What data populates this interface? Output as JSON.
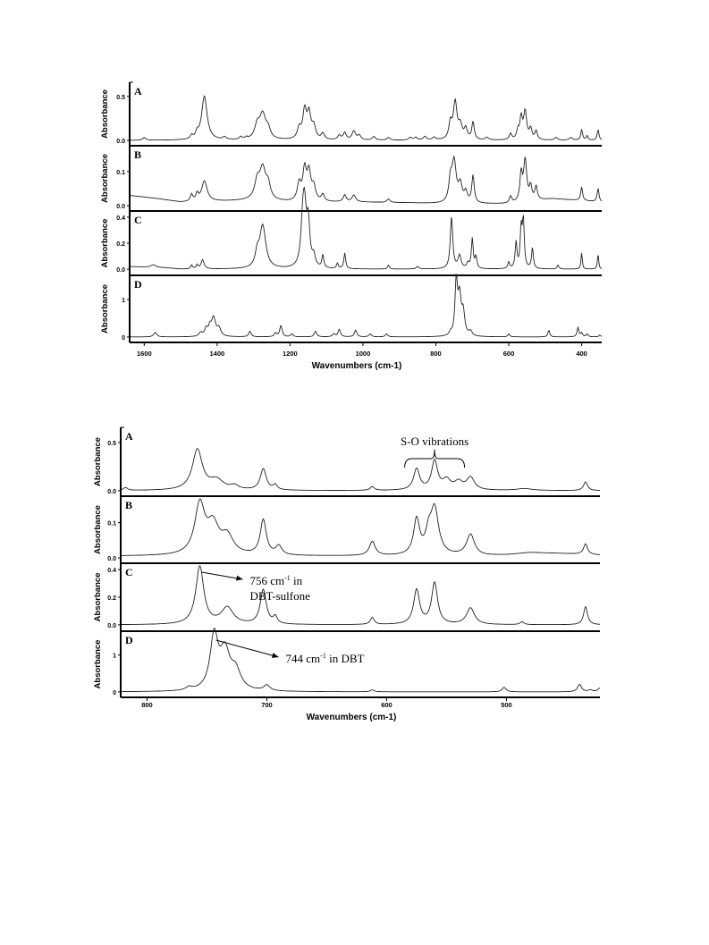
{
  "chart_data": [
    {
      "type": "line",
      "x_reversed": true,
      "xlim": [
        1640,
        345
      ],
      "xlabel": "Wavenumbers (cm-1)",
      "x_ticks": [
        1600,
        1400,
        1200,
        1000,
        800,
        600,
        400
      ],
      "grid": false,
      "panels": [
        {
          "label": "A",
          "ylabel": "Absorbance",
          "ylim": [
            -0.02,
            0.62
          ],
          "y_ticks": [
            0.0,
            0.5
          ],
          "y_tick_labels": [
            "0.0",
            "0.5"
          ],
          "peaks": [
            [
              1600,
              0.03,
              5
            ],
            [
              1470,
              0.04,
              4
            ],
            [
              1455,
              0.06,
              4
            ],
            [
              1435,
              0.5,
              9
            ],
            [
              1380,
              0.03,
              5
            ],
            [
              1335,
              0.03,
              4
            ],
            [
              1320,
              0.02,
              4
            ],
            [
              1290,
              0.15,
              8
            ],
            [
              1275,
              0.28,
              10
            ],
            [
              1260,
              0.1,
              7
            ],
            [
              1175,
              0.12,
              6
            ],
            [
              1160,
              0.32,
              6
            ],
            [
              1148,
              0.28,
              6
            ],
            [
              1135,
              0.14,
              6
            ],
            [
              1110,
              0.07,
              5
            ],
            [
              1065,
              0.05,
              5
            ],
            [
              1050,
              0.08,
              5
            ],
            [
              1025,
              0.1,
              6
            ],
            [
              1010,
              0.05,
              5
            ],
            [
              970,
              0.04,
              5
            ],
            [
              930,
              0.03,
              5
            ],
            [
              870,
              0.03,
              5
            ],
            [
              855,
              0.03,
              5
            ],
            [
              830,
              0.04,
              5
            ],
            [
              805,
              0.03,
              5
            ],
            [
              760,
              0.18,
              5
            ],
            [
              747,
              0.42,
              6
            ],
            [
              733,
              0.15,
              6
            ],
            [
              718,
              0.12,
              5
            ],
            [
              698,
              0.2,
              4
            ],
            [
              660,
              0.03,
              5
            ],
            [
              595,
              0.07,
              4
            ],
            [
              575,
              0.1,
              4
            ],
            [
              566,
              0.24,
              4
            ],
            [
              555,
              0.32,
              5
            ],
            [
              540,
              0.12,
              4
            ],
            [
              525,
              0.1,
              4
            ],
            [
              470,
              0.03,
              5
            ],
            [
              430,
              0.03,
              5
            ],
            [
              400,
              0.12,
              3
            ],
            [
              385,
              0.05,
              3
            ],
            [
              355,
              0.12,
              3
            ]
          ]
        },
        {
          "label": "B",
          "ylabel": "Absorbance",
          "ylim": [
            -0.005,
            0.165
          ],
          "y_ticks": [
            0.0,
            0.1
          ],
          "y_tick_labels": [
            "0.0",
            "0.1"
          ],
          "baseline": [
            [
              1640,
              0.03
            ],
            [
              1560,
              0.02
            ],
            [
              1500,
              0.01
            ],
            [
              1300,
              0.015
            ],
            [
              1200,
              0.01
            ],
            [
              1000,
              0.01
            ],
            [
              870,
              0.008
            ],
            [
              780,
              0.005
            ],
            [
              600,
              0.005
            ],
            [
              480,
              0.02
            ],
            [
              400,
              0.015
            ],
            [
              345,
              0.01
            ]
          ],
          "peaks": [
            [
              1470,
              0.02,
              4
            ],
            [
              1455,
              0.02,
              4
            ],
            [
              1435,
              0.06,
              9
            ],
            [
              1290,
              0.05,
              8
            ],
            [
              1275,
              0.09,
              10
            ],
            [
              1260,
              0.04,
              7
            ],
            [
              1175,
              0.05,
              6
            ],
            [
              1160,
              0.09,
              6
            ],
            [
              1148,
              0.08,
              6
            ],
            [
              1135,
              0.04,
              6
            ],
            [
              1110,
              0.02,
              5
            ],
            [
              1050,
              0.02,
              5
            ],
            [
              1025,
              0.02,
              6
            ],
            [
              930,
              0.01,
              5
            ],
            [
              760,
              0.06,
              5
            ],
            [
              750,
              0.12,
              7
            ],
            [
              733,
              0.05,
              6
            ],
            [
              718,
              0.03,
              5
            ],
            [
              698,
              0.08,
              4
            ],
            [
              595,
              0.02,
              4
            ],
            [
              566,
              0.08,
              4
            ],
            [
              555,
              0.12,
              5
            ],
            [
              540,
              0.04,
              4
            ],
            [
              525,
              0.04,
              4
            ],
            [
              400,
              0.04,
              3
            ],
            [
              355,
              0.04,
              3
            ]
          ]
        },
        {
          "label": "C",
          "ylabel": "Absorbance",
          "ylim": [
            -0.02,
            0.42
          ],
          "y_ticks": [
            0.0,
            0.2,
            0.4
          ],
          "y_tick_labels": [
            "0.0",
            "0.2",
            "0.4"
          ],
          "baseline": [
            [
              1640,
              0.02
            ],
            [
              1540,
              0.01
            ],
            [
              1500,
              0.0
            ],
            [
              345,
              0.0
            ]
          ],
          "peaks": [
            [
              1575,
              0.02,
              8
            ],
            [
              1470,
              0.03,
              3
            ],
            [
              1455,
              0.03,
              3
            ],
            [
              1440,
              0.07,
              5
            ],
            [
              1275,
              0.33,
              10
            ],
            [
              1290,
              0.1,
              6
            ],
            [
              1165,
              0.3,
              6
            ],
            [
              1160,
              0.37,
              6
            ],
            [
              1150,
              0.32,
              5
            ],
            [
              1135,
              0.08,
              5
            ],
            [
              1110,
              0.1,
              3
            ],
            [
              1070,
              0.04,
              3
            ],
            [
              1050,
              0.12,
              3
            ],
            [
              930,
              0.03,
              3
            ],
            [
              850,
              0.02,
              4
            ],
            [
              757,
              0.4,
              4
            ],
            [
              735,
              0.1,
              5
            ],
            [
              712,
              0.04,
              4
            ],
            [
              700,
              0.23,
              3
            ],
            [
              690,
              0.09,
              3
            ],
            [
              600,
              0.05,
              3
            ],
            [
              580,
              0.2,
              3
            ],
            [
              566,
              0.3,
              3
            ],
            [
              560,
              0.36,
              3
            ],
            [
              535,
              0.16,
              3
            ],
            [
              465,
              0.03,
              3
            ],
            [
              400,
              0.13,
              2
            ],
            [
              355,
              0.12,
              2
            ]
          ]
        },
        {
          "label": "D",
          "ylabel": "Absorbance",
          "ylim": [
            -0.05,
            1.55
          ],
          "y_ticks": [
            0,
            1
          ],
          "y_tick_labels": [
            "0",
            "1"
          ],
          "peaks": [
            [
              1570,
              0.12,
              5
            ],
            [
              1445,
              0.1,
              5
            ],
            [
              1430,
              0.2,
              5
            ],
            [
              1420,
              0.2,
              4
            ],
            [
              1410,
              0.5,
              7
            ],
            [
              1395,
              0.2,
              6
            ],
            [
              1310,
              0.15,
              4
            ],
            [
              1240,
              0.1,
              4
            ],
            [
              1225,
              0.3,
              4
            ],
            [
              1195,
              0.08,
              4
            ],
            [
              1130,
              0.15,
              4
            ],
            [
              1080,
              0.08,
              4
            ],
            [
              1065,
              0.2,
              4
            ],
            [
              1020,
              0.18,
              4
            ],
            [
              980,
              0.08,
              4
            ],
            [
              935,
              0.08,
              4
            ],
            [
              760,
              0.08,
              3
            ],
            [
              744,
              1.45,
              4
            ],
            [
              735,
              1.0,
              5
            ],
            [
              725,
              0.6,
              5
            ],
            [
              705,
              0.12,
              5
            ],
            [
              600,
              0.08,
              3
            ],
            [
              490,
              0.18,
              3
            ],
            [
              410,
              0.25,
              3
            ],
            [
              400,
              0.1,
              3
            ],
            [
              385,
              0.08,
              3
            ],
            [
              350,
              0.05,
              3
            ]
          ]
        }
      ]
    },
    {
      "type": "line",
      "x_reversed": true,
      "xlim": [
        822,
        422
      ],
      "xlabel": "Wavenumbers (cm-1)",
      "x_ticks": [
        800,
        700,
        600,
        500
      ],
      "grid": false,
      "panels": [
        {
          "label": "A",
          "ylabel": "Absorbance",
          "ylim": [
            -0.02,
            0.62
          ],
          "y_ticks": [
            0.0,
            0.5
          ],
          "y_tick_labels": [
            "0.0",
            "0.5"
          ],
          "peaks": [
            [
              818,
              0.03,
              2
            ],
            [
              758,
              0.42,
              5
            ],
            [
              742,
              0.1,
              7
            ],
            [
              727,
              0.04,
              4
            ],
            [
              703,
              0.22,
              3
            ],
            [
              693,
              0.05,
              2
            ],
            [
              612,
              0.04,
              2
            ],
            [
              575,
              0.22,
              3
            ],
            [
              560,
              0.3,
              3
            ],
            [
              550,
              0.1,
              4
            ],
            [
              540,
              0.08,
              4
            ],
            [
              530,
              0.13,
              4
            ],
            [
              485,
              0.02,
              8
            ],
            [
              434,
              0.09,
              2
            ]
          ]
        },
        {
          "label": "B",
          "ylabel": "Absorbance",
          "ylim": [
            -0.005,
            0.165
          ],
          "y_ticks": [
            0.0,
            0.1
          ],
          "y_tick_labels": [
            "0.0",
            "0.1"
          ],
          "baseline": [
            [
              822,
              0.005
            ],
            [
              780,
              0.005
            ],
            [
              520,
              0.005
            ],
            [
              500,
              0.008
            ],
            [
              480,
              0.015
            ],
            [
              450,
              0.012
            ],
            [
              422,
              0.008
            ]
          ],
          "peaks": [
            [
              756,
              0.14,
              5
            ],
            [
              745,
              0.08,
              6
            ],
            [
              733,
              0.05,
              6
            ],
            [
              703,
              0.1,
              3
            ],
            [
              690,
              0.025,
              3
            ],
            [
              612,
              0.04,
              3
            ],
            [
              575,
              0.1,
              3
            ],
            [
              565,
              0.05,
              3
            ],
            [
              560,
              0.13,
              4
            ],
            [
              530,
              0.06,
              4
            ],
            [
              434,
              0.03,
              2
            ]
          ]
        },
        {
          "label": "C",
          "ylabel": "Absorbance",
          "ylim": [
            -0.02,
            0.42
          ],
          "y_ticks": [
            0.0,
            0.2,
            0.4
          ],
          "y_tick_labels": [
            "0.0",
            "0.2",
            "0.4"
          ],
          "peaks": [
            [
              756,
              0.42,
              4
            ],
            [
              733,
              0.12,
              6
            ],
            [
              703,
              0.25,
              3
            ],
            [
              693,
              0.05,
              2
            ],
            [
              612,
              0.05,
              2
            ],
            [
              575,
              0.25,
              3
            ],
            [
              560,
              0.3,
              3
            ],
            [
              530,
              0.12,
              4
            ],
            [
              487,
              0.02,
              2
            ],
            [
              434,
              0.13,
              2
            ]
          ]
        },
        {
          "label": "D",
          "ylabel": "Absorbance",
          "ylim": [
            -0.05,
            1.55
          ],
          "y_ticks": [
            0,
            1
          ],
          "y_tick_labels": [
            "0",
            "1"
          ],
          "peaks": [
            [
              765,
              0.08,
              3
            ],
            [
              744,
              1.45,
              4
            ],
            [
              735,
              1.0,
              5
            ],
            [
              726,
              0.5,
              5
            ],
            [
              700,
              0.15,
              3
            ],
            [
              612,
              0.05,
              2
            ],
            [
              502,
              0.12,
              2
            ],
            [
              439,
              0.2,
              2
            ],
            [
              430,
              0.05,
              2
            ],
            [
              422,
              0.1,
              2
            ]
          ]
        }
      ],
      "annotations": [
        {
          "name": "so-vibrations",
          "panel": "A",
          "text": "S-O vibrations",
          "bracket_x_range": [
            585,
            535
          ]
        },
        {
          "name": "peak-756",
          "panel": "C",
          "target_x": 756,
          "text_main": "756 cm",
          "text_sup": "-1",
          "text_tail": " in",
          "text_line2": "DBT-sulfone"
        },
        {
          "name": "peak-744",
          "panel": "D",
          "target_x": 744,
          "text_main": "744 cm",
          "text_sup": "-1",
          "text_tail": " in DBT"
        }
      ]
    }
  ]
}
